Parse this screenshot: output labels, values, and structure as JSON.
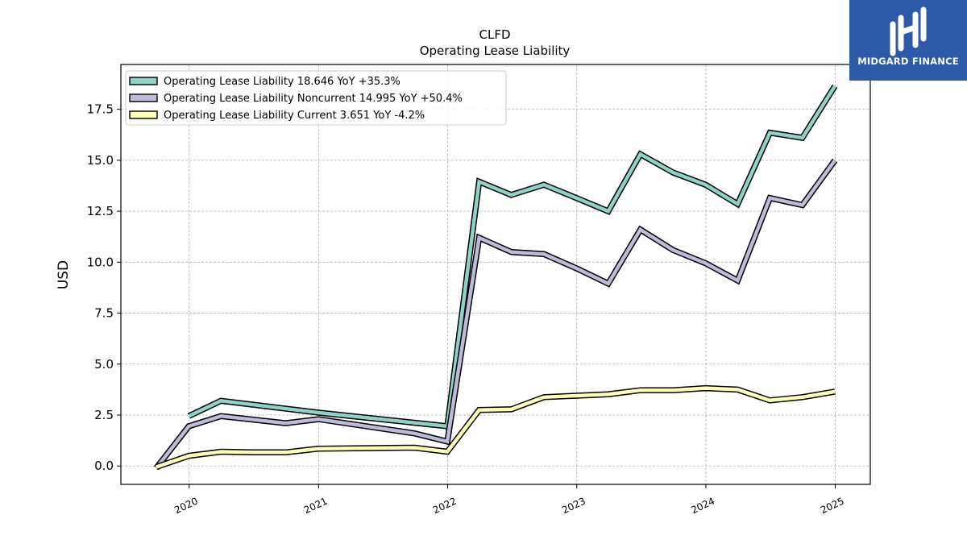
{
  "brand": {
    "name": "MIDGARD FINANCE",
    "bg_color": "#2d5aa8"
  },
  "chart_data": {
    "type": "line",
    "title": "CLFD",
    "subtitle": "Operating Lease Liability",
    "ylabel": "USD",
    "xlabel": "",
    "ylim": [
      -0.9,
      19.7
    ],
    "xlim": [
      "2019-06-22",
      "2025-04-10"
    ],
    "yticks": [
      0.0,
      2.5,
      5.0,
      7.5,
      10.0,
      12.5,
      15.0,
      17.5
    ],
    "ytick_labels": [
      "0.0",
      "2.5",
      "5.0",
      "7.5",
      "10.0",
      "12.5",
      "15.0",
      "17.5"
    ],
    "xticks": [
      "2020-01-01",
      "2021-01-01",
      "2022-01-01",
      "2023-01-01",
      "2024-01-01",
      "2025-01-01"
    ],
    "xtick_labels": [
      "2020",
      "2021",
      "2022",
      "2023",
      "2024",
      "2025"
    ],
    "grid": true,
    "legend_position": "top-left",
    "series": [
      {
        "name": "Operating Lease Liability",
        "legend_label": "Operating Lease Liability  18.646 YoY +35.3%",
        "color": "#8dd3c7",
        "points": [
          [
            "2019-12-31",
            2.45
          ],
          [
            "2020-03-31",
            3.2
          ],
          [
            "2021-01-01",
            2.62
          ],
          [
            "2021-12-31",
            1.95
          ],
          [
            "2022-03-31",
            13.95
          ],
          [
            "2022-06-30",
            13.3
          ],
          [
            "2022-09-30",
            13.8
          ],
          [
            "2022-12-31",
            13.15
          ],
          [
            "2023-03-31",
            12.5
          ],
          [
            "2023-06-30",
            15.3
          ],
          [
            "2023-09-30",
            14.4
          ],
          [
            "2023-12-31",
            13.8
          ],
          [
            "2024-03-31",
            12.85
          ],
          [
            "2024-06-30",
            16.35
          ],
          [
            "2024-09-30",
            16.1
          ],
          [
            "2024-12-31",
            18.646
          ]
        ]
      },
      {
        "name": "Operating Lease Liability Noncurrent",
        "legend_label": "Operating Lease Liability Noncurrent  14.995 YoY +50.4%",
        "color": "#bebada",
        "points": [
          [
            "2019-09-30",
            -0.1
          ],
          [
            "2019-12-31",
            1.95
          ],
          [
            "2020-03-31",
            2.45
          ],
          [
            "2020-09-30",
            2.1
          ],
          [
            "2021-01-01",
            2.3
          ],
          [
            "2021-09-30",
            1.6
          ],
          [
            "2021-12-31",
            1.2
          ],
          [
            "2022-03-31",
            11.2
          ],
          [
            "2022-06-30",
            10.5
          ],
          [
            "2022-09-30",
            10.4
          ],
          [
            "2022-12-31",
            9.7
          ],
          [
            "2023-03-31",
            8.95
          ],
          [
            "2023-06-30",
            11.6
          ],
          [
            "2023-09-30",
            10.6
          ],
          [
            "2023-12-31",
            9.95
          ],
          [
            "2024-03-31",
            9.1
          ],
          [
            "2024-06-30",
            13.15
          ],
          [
            "2024-09-30",
            12.8
          ],
          [
            "2024-12-31",
            14.995
          ]
        ]
      },
      {
        "name": "Operating Lease Liability Current",
        "legend_label": "Operating Lease Liability Current  3.651 YoY -4.2%",
        "color": "#ffffb3",
        "points": [
          [
            "2019-09-30",
            -0.05
          ],
          [
            "2019-12-31",
            0.5
          ],
          [
            "2020-03-31",
            0.7
          ],
          [
            "2020-06-30",
            0.67
          ],
          [
            "2020-09-30",
            0.67
          ],
          [
            "2021-01-01",
            0.85
          ],
          [
            "2021-09-30",
            0.9
          ],
          [
            "2021-12-31",
            0.7
          ],
          [
            "2022-03-31",
            2.75
          ],
          [
            "2022-06-30",
            2.78
          ],
          [
            "2022-09-30",
            3.38
          ],
          [
            "2022-12-31",
            3.45
          ],
          [
            "2023-03-31",
            3.52
          ],
          [
            "2023-06-30",
            3.72
          ],
          [
            "2023-09-30",
            3.72
          ],
          [
            "2023-12-31",
            3.82
          ],
          [
            "2024-03-31",
            3.75
          ],
          [
            "2024-06-30",
            3.22
          ],
          [
            "2024-09-30",
            3.38
          ],
          [
            "2024-12-31",
            3.651
          ]
        ]
      }
    ]
  }
}
